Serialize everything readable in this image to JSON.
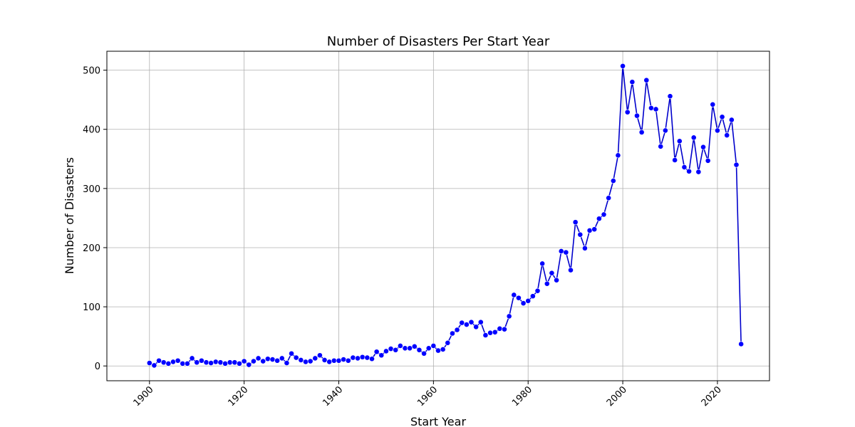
{
  "chart_data": {
    "type": "line",
    "title": "Number of Disasters Per Start Year",
    "xlabel": "Start Year",
    "ylabel": "Number of Disasters",
    "xlim": [
      1891,
      2031
    ],
    "ylim": [
      -25,
      532
    ],
    "xticks": [
      1900,
      1920,
      1940,
      1960,
      1980,
      2000,
      2020
    ],
    "yticks": [
      0,
      100,
      200,
      300,
      400,
      500
    ],
    "grid": true,
    "legend": "none",
    "colors": {
      "line": "#0000cc",
      "marker": "#0000ff",
      "grid": "#b0b0b0"
    },
    "x": [
      1900,
      1901,
      1902,
      1903,
      1904,
      1905,
      1906,
      1907,
      1908,
      1909,
      1910,
      1911,
      1912,
      1913,
      1914,
      1915,
      1916,
      1917,
      1918,
      1919,
      1920,
      1921,
      1922,
      1923,
      1924,
      1925,
      1926,
      1927,
      1928,
      1929,
      1930,
      1931,
      1932,
      1933,
      1934,
      1935,
      1936,
      1937,
      1938,
      1939,
      1940,
      1941,
      1942,
      1943,
      1944,
      1945,
      1946,
      1947,
      1948,
      1949,
      1950,
      1951,
      1952,
      1953,
      1954,
      1955,
      1956,
      1957,
      1958,
      1959,
      1960,
      1961,
      1962,
      1963,
      1964,
      1965,
      1966,
      1967,
      1968,
      1969,
      1970,
      1971,
      1972,
      1973,
      1974,
      1975,
      1976,
      1977,
      1978,
      1979,
      1980,
      1981,
      1982,
      1983,
      1984,
      1985,
      1986,
      1987,
      1988,
      1989,
      1990,
      1991,
      1992,
      1993,
      1994,
      1995,
      1996,
      1997,
      1998,
      1999,
      2000,
      2001,
      2002,
      2003,
      2004,
      2005,
      2006,
      2007,
      2008,
      2009,
      2010,
      2011,
      2012,
      2013,
      2014,
      2015,
      2016,
      2017,
      2018,
      2019,
      2020,
      2021,
      2022,
      2023,
      2024,
      2025
    ],
    "y": [
      5,
      1,
      9,
      6,
      4,
      7,
      9,
      4,
      4,
      13,
      6,
      9,
      6,
      5,
      7,
      6,
      4,
      6,
      6,
      4,
      8,
      2,
      8,
      13,
      8,
      12,
      11,
      9,
      13,
      5,
      21,
      14,
      10,
      7,
      8,
      13,
      18,
      10,
      7,
      9,
      9,
      11,
      9,
      14,
      13,
      15,
      14,
      12,
      24,
      18,
      25,
      29,
      27,
      34,
      30,
      30,
      33,
      27,
      21,
      30,
      34,
      26,
      28,
      39,
      55,
      61,
      73,
      70,
      74,
      66,
      74,
      52,
      56,
      57,
      63,
      62,
      84,
      120,
      115,
      106,
      110,
      118,
      127,
      173,
      139,
      157,
      145,
      194,
      192,
      162,
      243,
      222,
      199,
      229,
      231,
      249,
      256,
      284,
      313,
      356,
      507,
      429,
      480,
      423,
      395,
      483,
      436,
      434,
      371,
      398,
      456,
      348,
      380,
      336,
      329,
      386,
      328,
      370,
      347,
      442,
      398,
      421,
      390,
      416,
      340,
      37
    ]
  }
}
